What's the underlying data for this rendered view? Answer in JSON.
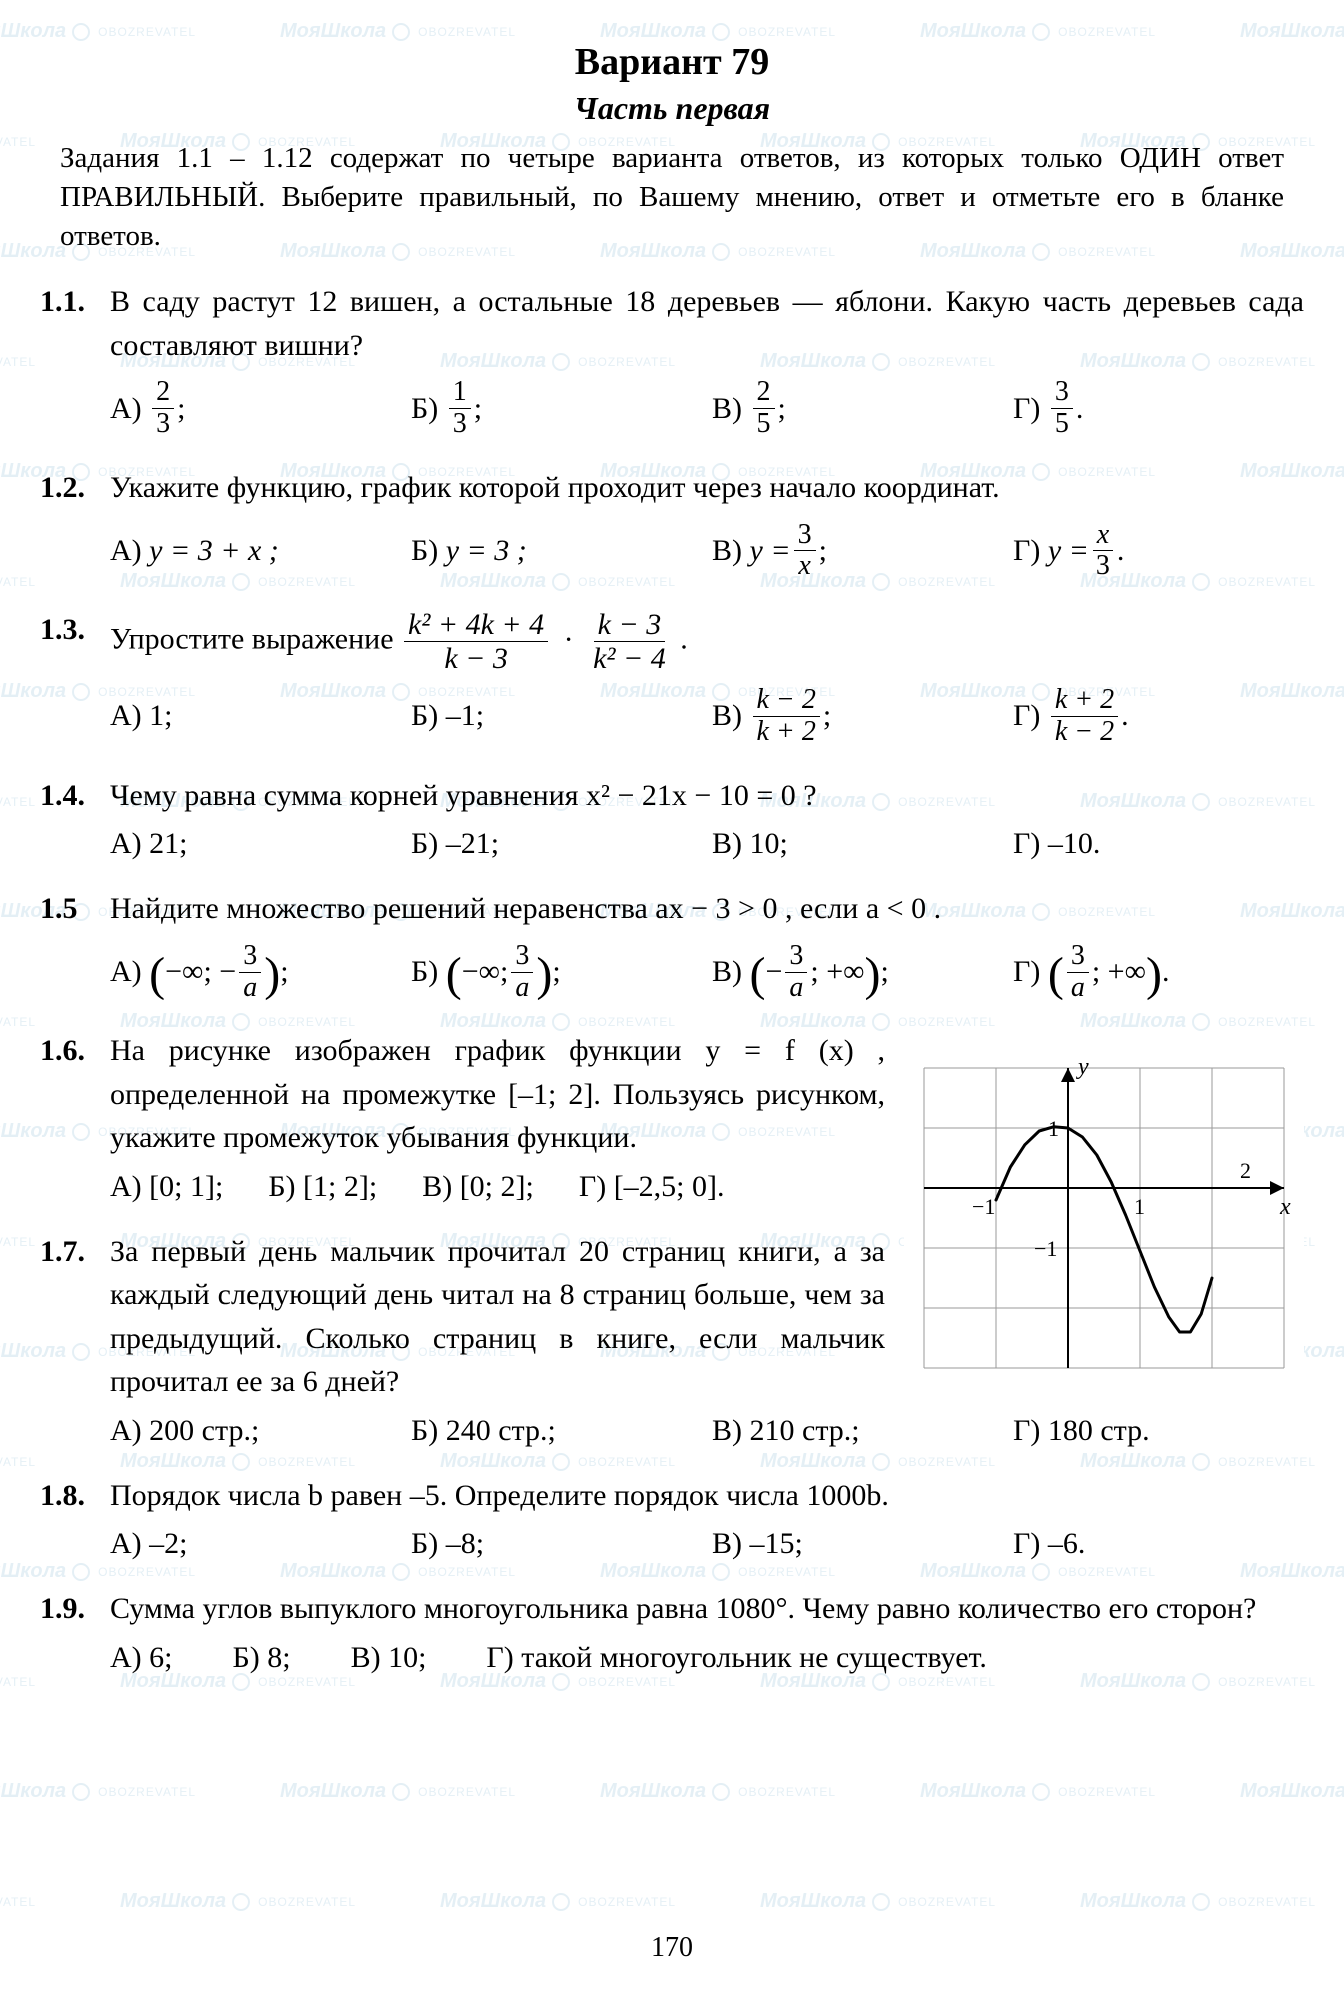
{
  "watermark": {
    "brand": "МояШкола",
    "sub": "OBOZREVATEL"
  },
  "header": {
    "title": "Вариант 79",
    "subtitle": "Часть первая"
  },
  "instructions": "Задания 1.1 – 1.12 содержат по четыре варианта ответов, из которых только ОДИН ответ ПРАВИЛЬНЫЙ. Выберите правильный, по Вашему мнению, ответ и отметьте его в бланке ответов.",
  "page_number": "170",
  "q1": {
    "num": "1.1.",
    "text": "В саду растут 12 вишен, а остальные 18 деревьев — яблони. Какую часть деревьев сада составляют вишни?",
    "opts": {
      "A": {
        "label": "А)",
        "n": "2",
        "d": "3",
        "tail": ";"
      },
      "B": {
        "label": "Б)",
        "n": "1",
        "d": "3",
        "tail": ";"
      },
      "V": {
        "label": "В)",
        "n": "2",
        "d": "5",
        "tail": ";"
      },
      "G": {
        "label": "Г)",
        "n": "3",
        "d": "5",
        "tail": "."
      }
    }
  },
  "q2": {
    "num": "1.2.",
    "text": "Укажите функцию, график которой проходит через начало координат.",
    "opts": {
      "A": {
        "label": "А)",
        "expr": "y = 3 + x ;"
      },
      "B": {
        "label": "Б)",
        "expr": "y = 3 ;"
      },
      "V": {
        "label": "В)",
        "pre": "y = ",
        "n": "3",
        "d": "x",
        "tail": " ;"
      },
      "G": {
        "label": "Г)",
        "pre": "y = ",
        "n": "x",
        "d": "3",
        "tail": " ."
      }
    }
  },
  "q3": {
    "num": "1.3.",
    "text_pre": "Упростите выражение ",
    "f1": {
      "n": "k² + 4k + 4",
      "d": "k − 3"
    },
    "f2": {
      "n": "k − 3",
      "d": "k² − 4"
    },
    "text_post": " .",
    "opts": {
      "A": {
        "label": "А)",
        "plain": "1;"
      },
      "B": {
        "label": "Б)",
        "plain": "–1;"
      },
      "V": {
        "label": "В)",
        "n": "k − 2",
        "d": "k + 2",
        "tail": " ;"
      },
      "G": {
        "label": "Г)",
        "n": "k + 2",
        "d": "k − 2",
        "tail": " ."
      }
    }
  },
  "q4": {
    "num": "1.4.",
    "text": "Чему равна сумма корней уравнения  x² − 21x − 10 = 0 ?",
    "opts": {
      "A": {
        "label": "А)",
        "plain": "21;"
      },
      "B": {
        "label": "Б)",
        "plain": "–21;"
      },
      "V": {
        "label": "В)",
        "plain": "10;"
      },
      "G": {
        "label": "Г)",
        "plain": "–10."
      }
    }
  },
  "q5": {
    "num": "1.5",
    "text": "Найдите множество решений неравенства  ax − 3 > 0 ,  если  a < 0 .",
    "opts": {
      "A": {
        "label": "А)",
        "pre": "−∞; −",
        "n": "3",
        "d": "a",
        "tail": ";"
      },
      "B": {
        "label": "Б)",
        "pre": "−∞; ",
        "n": "3",
        "d": "a",
        "tail": ";"
      },
      "V": {
        "label": "В)",
        "pre": "−",
        "n": "3",
        "d": "a",
        "post": "; +∞",
        "tail": ";"
      },
      "G": {
        "label": "Г)",
        "pre": "",
        "n": "3",
        "d": "a",
        "post": "; +∞",
        "tail": "."
      }
    }
  },
  "q6": {
    "num": "1.6.",
    "text": "На рисунке изображен график функции  y = f (x) , определенной на промежутке [–1; 2]. Пользуясь рисунком, укажите промежуток убывания функции.",
    "opts": {
      "A": {
        "label": "А)",
        "plain": "[0; 1];"
      },
      "B": {
        "label": "Б)",
        "plain": "[1; 2];"
      },
      "V": {
        "label": "В)",
        "plain": "[0; 2];"
      },
      "G": {
        "label": "Г)",
        "plain": "[–2,5; 0]."
      }
    },
    "graph": {
      "type": "function-plot",
      "xlim": [
        -2,
        3
      ],
      "ylim": [
        -3,
        2
      ],
      "grid_step": 1,
      "grid_color": "#9a9a9a",
      "axis_color": "#000000",
      "curve_color": "#000000",
      "curve_width": 3,
      "background_color": "#ffffff",
      "x_label": "x",
      "y_label": "y",
      "tick_labels": {
        "x": [
          "−1",
          "1",
          "2"
        ],
        "y": [
          "1",
          "−1"
        ]
      },
      "curve_points": [
        [
          -1.0,
          -0.2
        ],
        [
          -0.8,
          0.35
        ],
        [
          -0.6,
          0.72
        ],
        [
          -0.4,
          0.95
        ],
        [
          -0.2,
          1.02
        ],
        [
          0.0,
          1.0
        ],
        [
          0.2,
          0.85
        ],
        [
          0.4,
          0.55
        ],
        [
          0.6,
          0.1
        ],
        [
          0.8,
          -0.45
        ],
        [
          1.0,
          -1.05
        ],
        [
          1.2,
          -1.65
        ],
        [
          1.4,
          -2.15
        ],
        [
          1.55,
          -2.4
        ],
        [
          1.7,
          -2.4
        ],
        [
          1.85,
          -2.1
        ],
        [
          2.0,
          -1.5
        ]
      ]
    }
  },
  "q7": {
    "num": "1.7.",
    "text": "За первый день мальчик прочитал 20 страниц книги, а за каждый следующий день читал на 8 страниц больше, чем за предыдущий. Сколько страниц в книге, если мальчик прочитал ее за 6 дней?",
    "opts": {
      "A": {
        "label": "А)",
        "plain": "200 стр.;"
      },
      "B": {
        "label": "Б)",
        "plain": "240 стр.;"
      },
      "V": {
        "label": "В)",
        "plain": "210 стр.;"
      },
      "G": {
        "label": "Г)",
        "plain": "180 стр."
      }
    }
  },
  "q8": {
    "num": "1.8.",
    "text": "Порядок числа b равен –5. Определите порядок числа 1000b.",
    "opts": {
      "A": {
        "label": "А)",
        "plain": "–2;"
      },
      "B": {
        "label": "Б)",
        "plain": "–8;"
      },
      "V": {
        "label": "В)",
        "plain": "–15;"
      },
      "G": {
        "label": "Г)",
        "plain": "–6."
      }
    }
  },
  "q9": {
    "num": "1.9.",
    "text": "Сумма углов выпуклого многоугольника равна 1080°. Чему равно количество его сторон?",
    "opts": {
      "A": {
        "label": "А)",
        "plain": "6;"
      },
      "B": {
        "label": "Б)",
        "plain": "8;"
      },
      "V": {
        "label": "В)",
        "plain": "10;"
      },
      "G": {
        "label": "Г)",
        "plain": "такой многоугольник не существует."
      }
    }
  }
}
